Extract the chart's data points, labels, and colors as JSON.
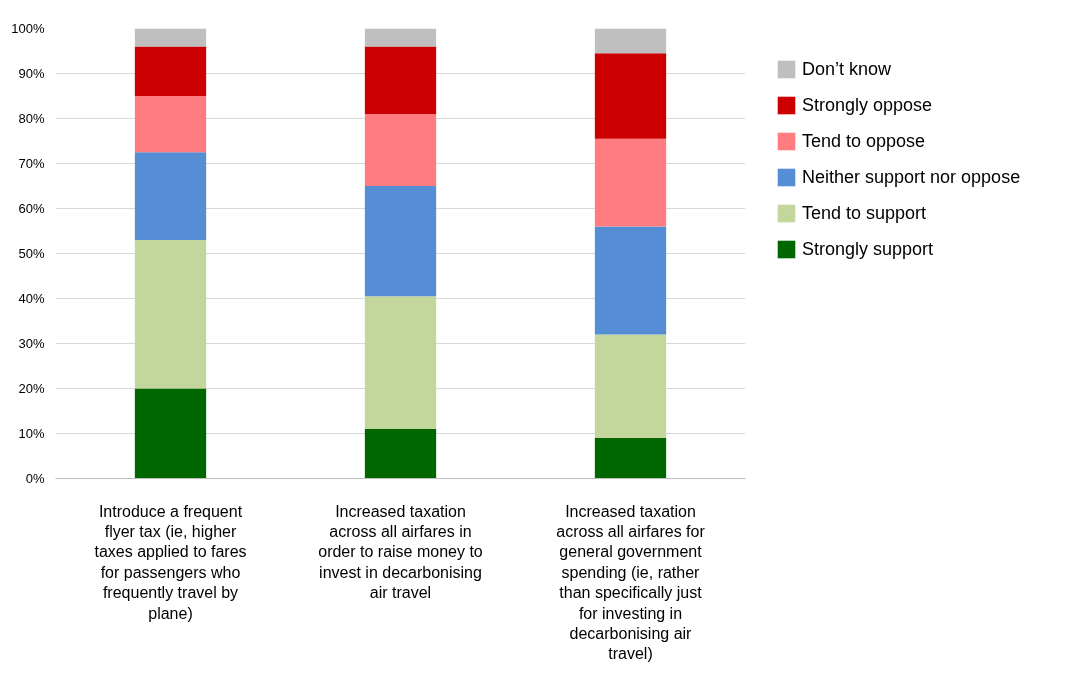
{
  "chart_data": {
    "type": "bar",
    "stacked": true,
    "categories": [
      "Introduce a frequent flyer tax (ie, higher taxes applied to fares for passengers who frequently travel by plane)",
      "Increased taxation across all airfares in order to raise money to invest in decarbonising air travel",
      "Increased taxation across all airfares for general government spending (ie, rather than specifically just for investing in decarbonising air travel)"
    ],
    "series": [
      {
        "name": "Strongly support",
        "color": "#006600",
        "values": [
          20,
          11,
          9
        ]
      },
      {
        "name": "Tend to support",
        "color": "#c3d69b",
        "values": [
          33,
          29.5,
          23
        ]
      },
      {
        "name": "Neither support nor oppose",
        "color": "#558ed5",
        "values": [
          19.5,
          24.5,
          24
        ]
      },
      {
        "name": "Tend to oppose",
        "color": "#ff7c80",
        "values": [
          12.5,
          16,
          19.5
        ]
      },
      {
        "name": "Strongly oppose",
        "color": "#cc0000",
        "values": [
          11,
          15,
          19
        ]
      },
      {
        "name": "Don’t know",
        "color": "#bfbfbf",
        "values": [
          4,
          4,
          5.5
        ]
      }
    ],
    "ylim": [
      0,
      100
    ],
    "yticks": [
      {
        "value": 0,
        "label": "0%"
      },
      {
        "value": 10,
        "label": "10%"
      },
      {
        "value": 20,
        "label": "20%"
      },
      {
        "value": 30,
        "label": "30%"
      },
      {
        "value": 40,
        "label": "40%"
      },
      {
        "value": 50,
        "label": "50%"
      },
      {
        "value": 60,
        "label": "60%"
      },
      {
        "value": 70,
        "label": "70%"
      },
      {
        "value": 80,
        "label": "80%"
      },
      {
        "value": 90,
        "label": "90%"
      },
      {
        "value": 100,
        "label": "100%"
      }
    ],
    "grid": "y",
    "legend": "right"
  }
}
